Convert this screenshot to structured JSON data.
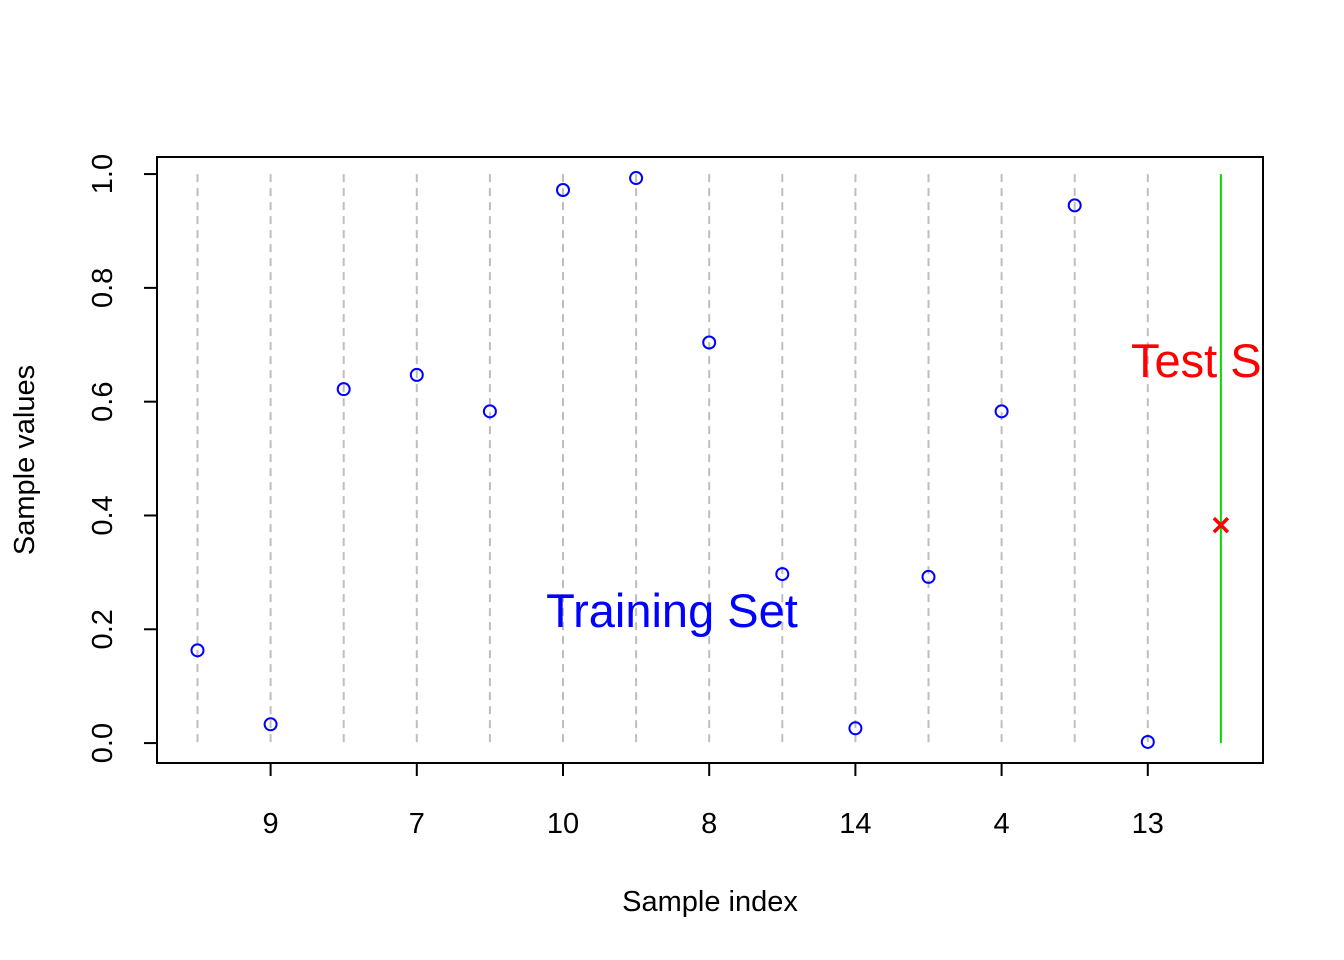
{
  "chart_data": {
    "type": "scatter",
    "title": "",
    "xlabel": "Sample index",
    "ylabel": "Sample values",
    "x_tick_labels": [
      "9",
      "7",
      "10",
      "8",
      "14",
      "4",
      "13"
    ],
    "y_tick_labels": [
      "0.0",
      "0.2",
      "0.4",
      "0.6",
      "0.8",
      "1.0"
    ],
    "y_ticks": [
      0,
      0.2,
      0.4,
      0.6,
      0.8,
      1.0
    ],
    "ylim": [
      -0.035,
      1.03
    ],
    "grid": "vertical dashed lines at training positions",
    "training_series": {
      "color": "#0000ff",
      "marker": "open-circle",
      "values": [
        0.163,
        0.033,
        0.622,
        0.647,
        0.583,
        0.972,
        0.993,
        0.704,
        0.297,
        0.026,
        0.292,
        0.583,
        0.945,
        0.002
      ]
    },
    "test_series": {
      "color": "#ff0000",
      "marker": "x",
      "value": 0.383,
      "line_color": "#00dd00"
    },
    "annotations": {
      "training": {
        "text": "Training Set",
        "color": "#0000ff"
      },
      "test": {
        "text": "Test Set",
        "color": "#ff0000"
      }
    }
  }
}
